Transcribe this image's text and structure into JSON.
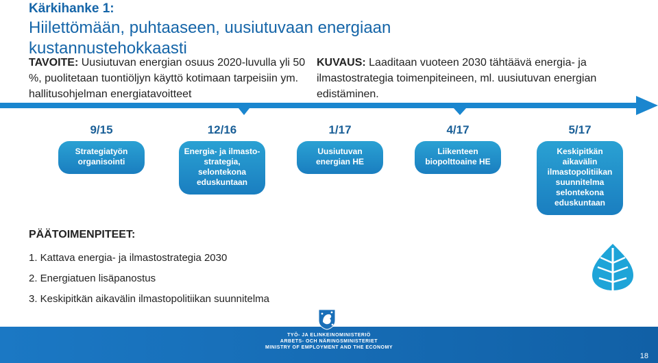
{
  "header": {
    "title_line1": "Kärkihanke 1:",
    "title_line2": "Hiilettömään, puhtaaseen, uusiutuvaan energiaan kustannustehokkaasti"
  },
  "goal": {
    "label": "TAVOITE:",
    "text": " Uusiutuvan energian osuus 2020-luvulla yli 50 %, puolitetaan tuontiöljyn käyttö kotimaan tarpeisiin ym. hallitusohjelman energiatavoitteet"
  },
  "description": {
    "label": "KUVAUS:",
    "text": " Laaditaan vuoteen 2030 tähtäävä energia- ja ilmastostrategia toimenpiteineen, ml. uusiutuvan energian edistäminen."
  },
  "milestones": [
    {
      "date": "9/15",
      "text": "Strategiatyön organisointi"
    },
    {
      "date": "12/16",
      "text": "Energia- ja ilmasto-strategia, selontekona eduskuntaan"
    },
    {
      "date": "1/17",
      "text": "Uusiutuvan energian HE"
    },
    {
      "date": "4/17",
      "text": "Liikenteen biopolttoaine HE"
    },
    {
      "date": "5/17",
      "text": "Keskipitkän aikavälin ilmastopolitiikan suunnitelma selontekona eduskuntaan"
    }
  ],
  "actions": {
    "title": "PÄÄTOIMENPITEET:",
    "items": [
      "1. Kattava energia- ja ilmastostrategia 2030",
      "2. Energiatuen lisäpanostus",
      "3. Keskipitkän aikavälin ilmastopolitiikan suunnitelma"
    ]
  },
  "footer": {
    "ministry_fi": "TYÖ- JA ELINKEINOMINISTERIÖ",
    "ministry_sv": "ARBETS- OCH NÄRINGSMINISTERIET",
    "ministry_en": "MINISTRY OF EMPLOYMENT AND THE ECONOMY",
    "page_number": "18"
  },
  "icons": {
    "leaf": "leaf-icon",
    "crest": "lion-crest-icon"
  },
  "colors": {
    "title": "#1565a8",
    "timeline": "#1a86cf",
    "box": "#1f8fcb",
    "footer": "#1a6fb8"
  }
}
